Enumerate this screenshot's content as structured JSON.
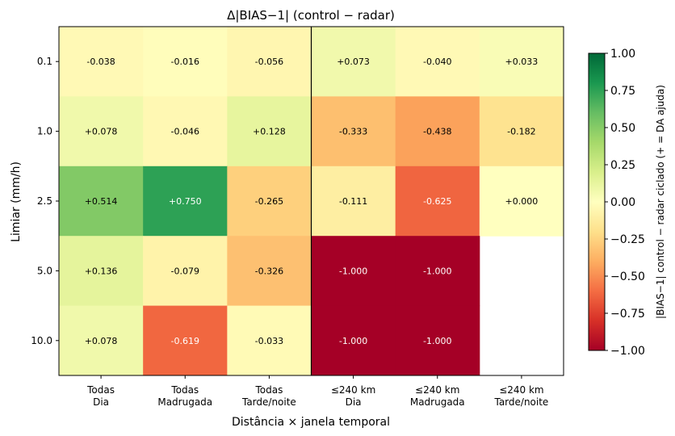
{
  "chart_data": {
    "type": "heatmap",
    "title": "Δ|BIAS−1|  (control − radar)",
    "xlabel": "Distância × janela temporal",
    "ylabel": "Limiar (mm/h)",
    "x_categories": [
      [
        "Todas",
        "Dia"
      ],
      [
        "Todas",
        "Madrugada"
      ],
      [
        "Todas",
        "Tarde/noite"
      ],
      [
        "≤240 km",
        "Dia"
      ],
      [
        "≤240 km",
        "Madrugada"
      ],
      [
        "≤240 km",
        "Tarde/noite"
      ]
    ],
    "y_categories": [
      "0.1",
      "1.0",
      "2.5",
      "5.0",
      "10.0"
    ],
    "values": [
      [
        -0.038,
        -0.016,
        -0.056,
        0.073,
        -0.04,
        0.033
      ],
      [
        0.078,
        -0.046,
        0.128,
        -0.333,
        -0.438,
        -0.182
      ],
      [
        0.514,
        0.75,
        -0.265,
        -0.111,
        -0.625,
        0.0
      ],
      [
        0.136,
        -0.079,
        -0.326,
        -1.0,
        -1.0,
        null
      ],
      [
        0.078,
        -0.619,
        -0.033,
        -1.0,
        -1.0,
        null
      ]
    ],
    "cell_labels": [
      [
        "-0.038",
        "-0.016",
        "-0.056",
        "+0.073",
        "-0.040",
        "+0.033"
      ],
      [
        "+0.078",
        "-0.046",
        "+0.128",
        "-0.333",
        "-0.438",
        "-0.182"
      ],
      [
        "+0.514",
        "+0.750",
        "-0.265",
        "-0.111",
        "-0.625",
        "+0.000"
      ],
      [
        "+0.136",
        "-0.079",
        "-0.326",
        "-1.000",
        "-1.000",
        ""
      ],
      [
        "+0.078",
        "-0.619",
        "-0.033",
        "-1.000",
        "-1.000",
        ""
      ]
    ],
    "colormap": "RdYlGn",
    "vmin": -1.0,
    "vmax": 1.0,
    "colorbar": {
      "label": "|BIAS−1| control − radar ciclado  (+ = DA ajuda)",
      "ticks": [
        1.0,
        0.75,
        0.5,
        0.25,
        0.0,
        -0.25,
        -0.5,
        -0.75,
        -1.0
      ],
      "tick_labels": [
        "1.00",
        "0.75",
        "0.50",
        "0.25",
        "0.00",
        "−0.25",
        "−0.50",
        "−0.75",
        "−1.00"
      ]
    },
    "separator_after_column": 3,
    "grid": false
  }
}
